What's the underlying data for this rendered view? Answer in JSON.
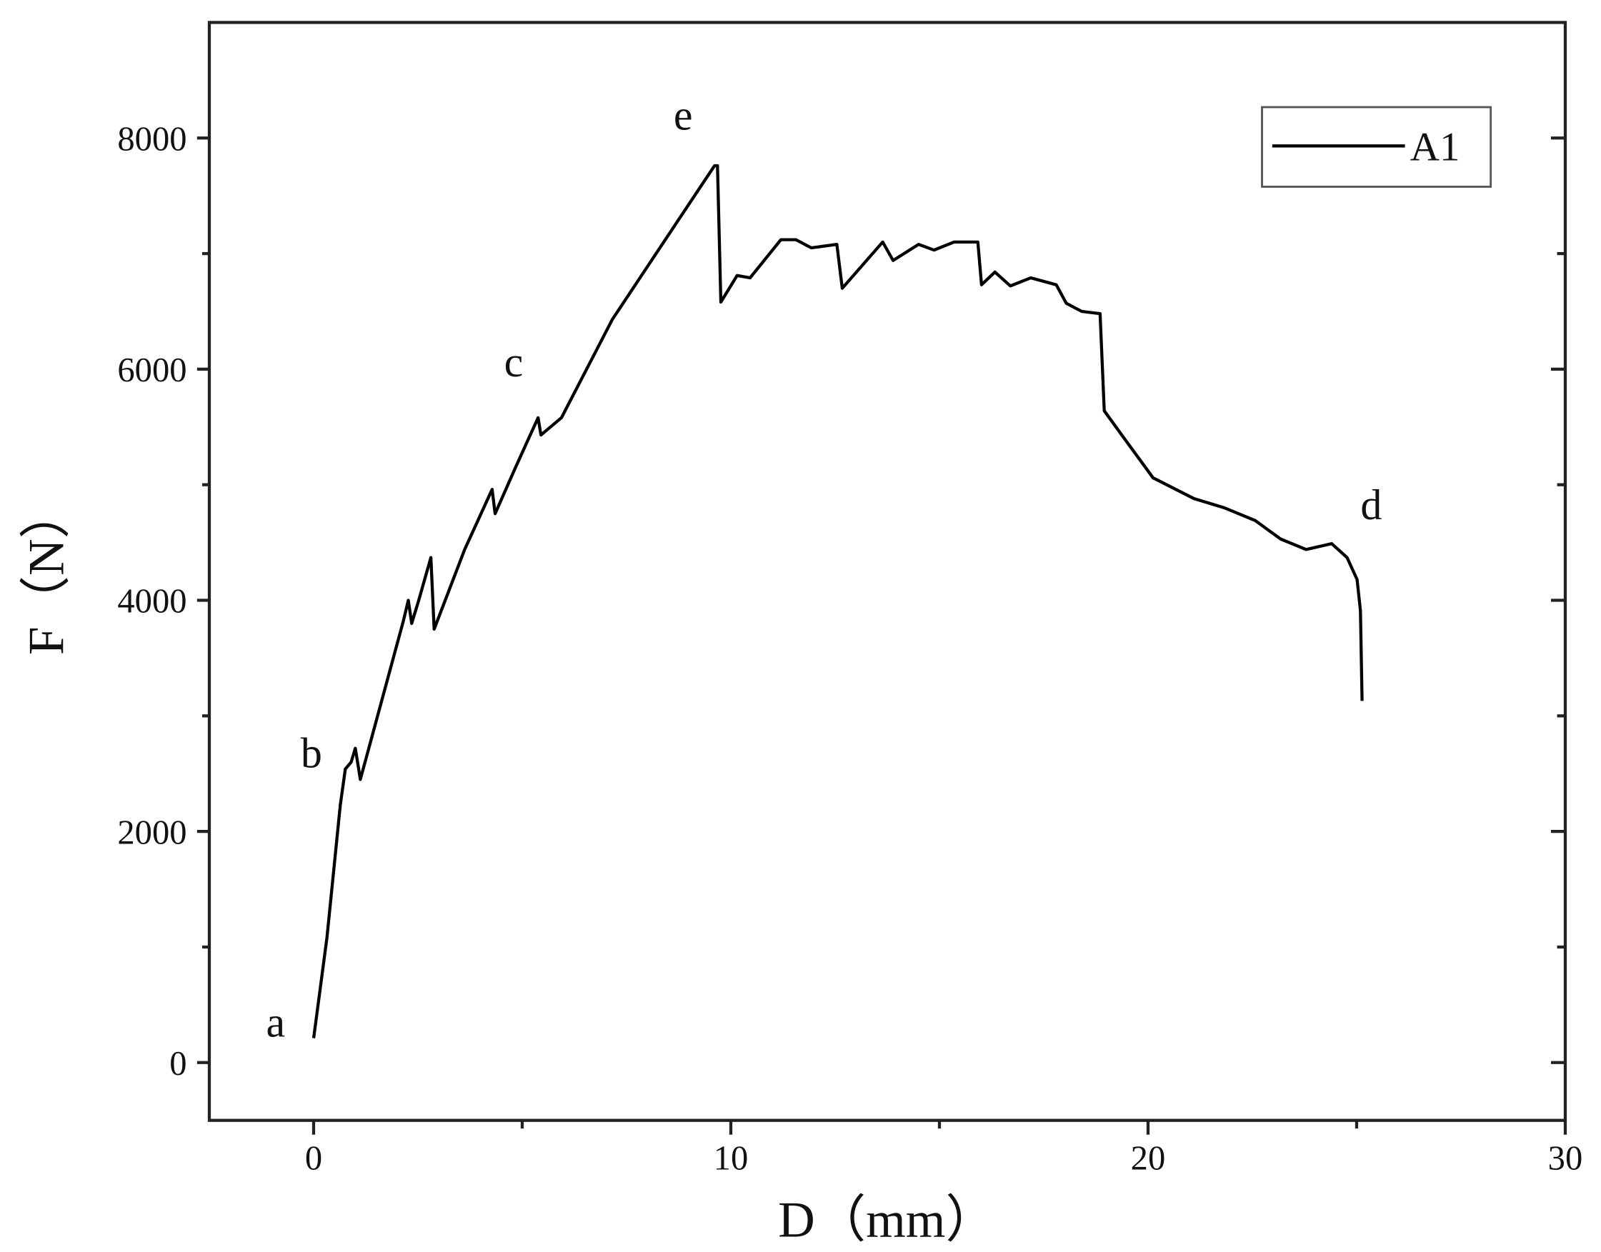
{
  "chart_data": {
    "type": "line",
    "x_label": "D（mm）",
    "y_label": "F（N）",
    "xlim": [
      -2.5,
      30
    ],
    "ylim": [
      -500,
      9000
    ],
    "xticks": [
      0,
      10,
      20,
      30
    ],
    "xminorticks": [
      5,
      15,
      25
    ],
    "yticks": [
      0,
      2000,
      4000,
      6000,
      8000
    ],
    "yminorticks": [
      1000,
      3000,
      5000,
      7000
    ],
    "legend": "upper right",
    "annotations": [
      "a",
      "b",
      "c",
      "e",
      "d"
    ],
    "x": [
      0,
      0.32,
      0.64,
      0.76,
      0.9,
      1.0,
      1.12,
      1.42,
      2.15,
      2.27,
      2.35,
      2.52,
      2.81,
      2.89,
      3.62,
      4.28,
      4.35,
      4.84,
      5.38,
      5.45,
      5.94,
      7.16,
      8.63,
      9.61,
      9.68,
      9.76,
      10.15,
      10.46,
      11.2,
      11.56,
      11.93,
      12.54,
      12.67,
      13.64,
      13.89,
      14.5,
      14.87,
      15.35,
      15.92,
      16.01,
      16.33,
      16.7,
      17.19,
      17.8,
      18.04,
      18.41,
      18.85,
      18.95,
      19.39,
      20.12,
      21.1,
      21.83,
      22.57,
      23.18,
      23.79,
      24.4,
      24.77,
      25.01,
      25.09,
      25.13
    ],
    "series": [
      {
        "name": "A1",
        "color": "#000000",
        "values": [
          212,
          1080,
          2230,
          2540,
          2600,
          2720,
          2450,
          2850,
          3820,
          4000,
          3800,
          4000,
          4370,
          3750,
          4440,
          4960,
          4750,
          5150,
          5580,
          5430,
          5580,
          6430,
          7230,
          7760,
          7760,
          6580,
          6810,
          6790,
          7120,
          7120,
          7050,
          7080,
          6700,
          7100,
          6940,
          7080,
          7030,
          7100,
          7100,
          6730,
          6840,
          6720,
          6790,
          6730,
          6570,
          6500,
          6480,
          5640,
          5420,
          5060,
          4880,
          4800,
          4690,
          4530,
          4440,
          4490,
          4370,
          4180,
          3910,
          3130
        ]
      }
    ]
  }
}
